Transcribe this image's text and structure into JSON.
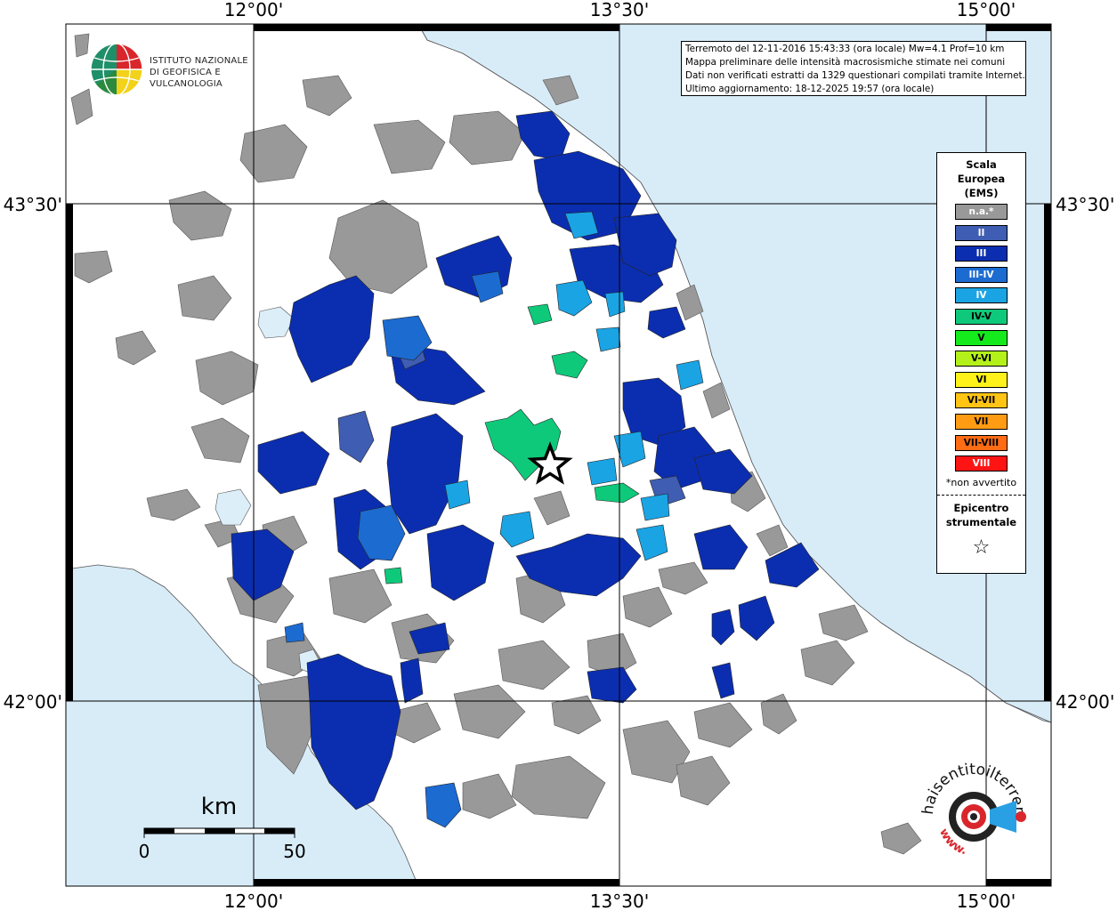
{
  "map": {
    "top_lon_labels": [
      "12°00'",
      "13°30'",
      "15°00'"
    ],
    "bottom_lon_labels": [
      "12°00'",
      "13°30'",
      "15°00'"
    ],
    "left_lat_labels": [
      "43°30'",
      "42°00'"
    ],
    "right_lat_labels": [
      "43°30'",
      "42°00'"
    ],
    "colors": {
      "sea": "#d8ecf8",
      "land": "#ffffff",
      "na": "#999999",
      "II": "#3f5db2",
      "III": "#0b2eb0",
      "III-IV": "#1c6bd1",
      "IV": "#1aa4e4",
      "IV-V": "#0fc97a",
      "V": "#14ea1c",
      "epicentre": "#ffffff"
    }
  },
  "info": {
    "line1": "Terremoto del 12-11-2016 15:43:33 (ora locale) Mw=4.1 Prof=10 km",
    "line2": "Mappa preliminare delle intensità macrosismiche stimate nei comuni",
    "line3": "Dati non verificati estratti da 1329 questionari compilati tramite Internet.",
    "line4": "Ultimo aggiornamento: 18-12-2025 19:57 (ora locale)"
  },
  "legend": {
    "title_line1": "Scala",
    "title_line2": "Europea",
    "title_line3": "(EMS)",
    "items": [
      {
        "label": "n.a.*",
        "color": "#999999",
        "text_color": "#ffffff"
      },
      {
        "label": "II",
        "color": "#3f5db2",
        "text_color": "#ffffff"
      },
      {
        "label": "III",
        "color": "#0b2eb0",
        "text_color": "#ffffff"
      },
      {
        "label": "III-IV",
        "color": "#1c6bd1",
        "text_color": "#ffffff"
      },
      {
        "label": "IV",
        "color": "#1aa4e4",
        "text_color": "#ffffff"
      },
      {
        "label": "IV-V",
        "color": "#0fc97a",
        "text_color": "#000000"
      },
      {
        "label": "V",
        "color": "#14ea1c",
        "text_color": "#000000"
      },
      {
        "label": "V-VI",
        "color": "#b4f01a",
        "text_color": "#000000"
      },
      {
        "label": "VI",
        "color": "#fff21a",
        "text_color": "#000000"
      },
      {
        "label": "VI-VII",
        "color": "#ffc414",
        "text_color": "#000000"
      },
      {
        "label": "VII",
        "color": "#ff9c14",
        "text_color": "#000000"
      },
      {
        "label": "VII-VIII",
        "color": "#ff6c14",
        "text_color": "#000000"
      },
      {
        "label": "VIII",
        "color": "#ff1414",
        "text_color": "#ffffff"
      }
    ],
    "note": "*non avvertito",
    "epicentre_line1": "Epicentro",
    "epicentre_line2": "strumentale",
    "epicentre_symbol": "☆"
  },
  "scale_bar": {
    "unit": "km",
    "start_label": "0",
    "end_label": "50"
  },
  "logo_ingv": {
    "line1": "ISTITUTO NAZIONALE",
    "line2": "DI GEOFISICA E VULCANOLOGIA"
  },
  "logo_hsit": {
    "text": "haisentitoilterremoto.it",
    "url": "www."
  }
}
